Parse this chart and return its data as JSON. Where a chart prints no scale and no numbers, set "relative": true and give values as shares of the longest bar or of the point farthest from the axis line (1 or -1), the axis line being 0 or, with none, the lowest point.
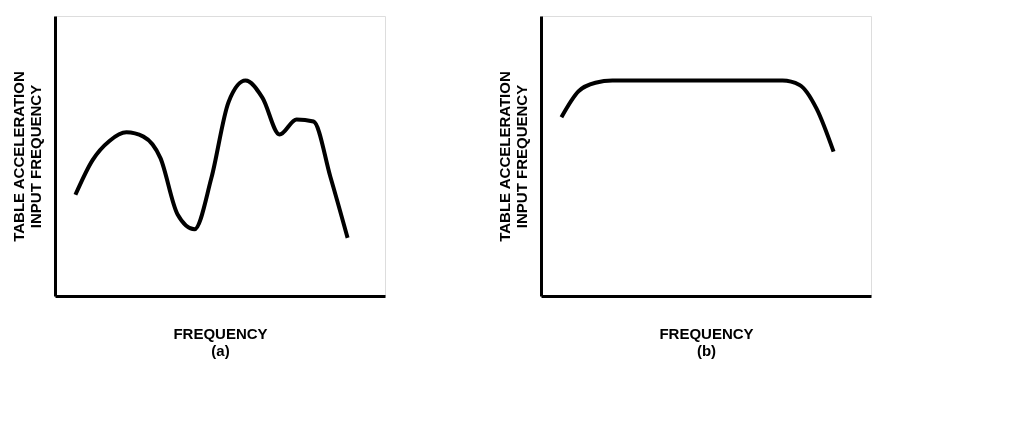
{
  "chart_data": [
    {
      "type": "line",
      "relative": true,
      "xlabel": "FREQUENCY",
      "ylabel": "TABLE ACCELERATION\nINPUT FREQUENCY",
      "annotations": [
        "(a)"
      ],
      "categories": [
        null,
        null,
        null,
        null,
        null,
        null,
        null,
        null,
        null,
        null,
        null,
        null,
        null,
        null,
        null,
        null,
        null
      ],
      "series": [
        {
          "color": "#000000",
          "values": [
            0.47,
            0.63,
            0.72,
            0.76,
            0.74,
            0.64,
            0.38,
            0.31,
            0.55,
            0.9,
            1.0,
            0.92,
            0.75,
            0.82,
            0.81,
            0.55,
            0.27
          ]
        }
      ]
    },
    {
      "type": "line",
      "relative": true,
      "xlabel": "FREQUENCY",
      "ylabel": "TABLE ACCELERATION\nINPUT FREQUENCY",
      "annotations": [
        "(b)"
      ],
      "categories": [
        null,
        null,
        null,
        null,
        null,
        null,
        null,
        null,
        null,
        null,
        null,
        null,
        null,
        null,
        null,
        null,
        null
      ],
      "series": [
        {
          "color": "#000000",
          "values": [
            0.83,
            0.95,
            0.99,
            1.0,
            1.0,
            1.0,
            1.0,
            1.0,
            1.0,
            1.0,
            1.0,
            1.0,
            1.0,
            1.0,
            0.98,
            0.87,
            0.67
          ]
        }
      ]
    }
  ]
}
